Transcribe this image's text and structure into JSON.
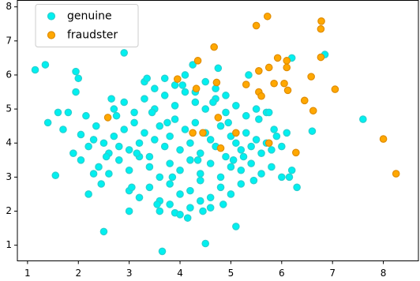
{
  "chart_data": {
    "type": "scatter",
    "xlim": [
      0.8,
      8.69
    ],
    "ylim": [
      0.54,
      8.19
    ],
    "xticks": [
      1,
      2,
      3,
      4,
      5,
      6,
      7,
      8
    ],
    "yticks": [
      1,
      2,
      3,
      4,
      5,
      6,
      7,
      8
    ],
    "legend": "upper left",
    "series": [
      {
        "name": "genuine",
        "color": "#00f0f0",
        "edge": "#2ccfcf",
        "x": [
          1.15,
          1.35,
          2.9,
          1.95,
          2.0,
          1.95,
          1.55,
          1.4,
          1.6,
          1.7,
          1.8,
          2.05,
          1.9,
          2.05,
          2.5,
          3.65,
          4.5,
          5.1,
          2.2,
          7.6,
          6.85,
          6.2,
          6.6,
          3.0,
          3.9,
          4.6,
          6.3,
          2.45,
          2.15,
          2.3,
          2.5,
          2.6,
          2.7,
          2.8,
          2.9,
          3.0,
          3.1,
          3.2,
          3.3,
          3.4,
          3.5,
          3.6,
          3.7,
          3.8,
          3.9,
          4.0,
          4.1,
          4.2,
          4.3,
          4.4,
          4.5,
          4.6,
          4.7,
          4.8,
          4.9,
          5.0,
          5.1,
          5.2,
          5.3,
          5.4,
          5.5,
          5.6,
          5.7,
          5.8,
          5.9,
          6.0,
          2.4,
          2.6,
          2.8,
          3.0,
          3.2,
          3.4,
          3.6,
          3.8,
          4.0,
          4.2,
          4.4,
          4.6,
          4.8,
          5.0,
          5.2,
          5.4,
          5.6,
          5.8,
          6.0,
          6.2,
          2.7,
          2.9,
          3.1,
          3.3,
          3.5,
          3.7,
          3.9,
          4.1,
          4.3,
          4.5,
          4.7,
          4.9,
          5.1,
          5.3,
          5.5,
          5.7,
          3.0,
          3.2,
          3.4,
          3.6,
          3.8,
          4.0,
          4.2,
          4.4,
          4.6,
          4.8,
          5.0,
          5.2,
          3.3,
          3.5,
          3.7,
          3.9,
          4.1,
          4.3,
          4.5,
          4.7,
          4.9,
          3.6,
          3.8,
          4.0,
          4.2,
          4.4,
          2.2,
          2.35,
          2.55,
          2.75,
          3.15,
          3.45,
          3.75,
          4.05,
          4.35,
          4.65,
          4.95,
          5.25,
          5.55,
          5.85,
          6.1,
          2.3,
          3.05,
          3.55,
          4.15,
          4.85,
          5.45,
          6.15,
          2.65,
          3.35,
          4.25,
          4.75,
          5.35,
          5.75,
          3.85,
          4.45,
          5.05
        ],
        "values": [
          6.15,
          6.3,
          6.65,
          6.1,
          5.9,
          5.5,
          3.05,
          4.6,
          4.9,
          4.4,
          4.9,
          4.25,
          3.7,
          3.5,
          1.4,
          0.82,
          1.05,
          1.55,
          2.5,
          4.7,
          6.6,
          6.5,
          4.35,
          2.0,
          1.95,
          2.1,
          2.7,
          2.8,
          4.8,
          4.1,
          4.0,
          3.7,
          4.2,
          3.9,
          4.4,
          3.8,
          4.6,
          4.0,
          4.3,
          3.6,
          4.1,
          4.5,
          3.9,
          4.2,
          4.7,
          3.8,
          4.4,
          4.0,
          4.6,
          3.7,
          4.3,
          4.1,
          3.9,
          4.5,
          3.6,
          4.2,
          4.0,
          3.8,
          4.3,
          3.9,
          4.1,
          3.7,
          4.0,
          3.8,
          4.2,
          3.9,
          3.3,
          3.1,
          3.5,
          3.2,
          3.6,
          3.3,
          3.0,
          3.4,
          3.2,
          3.5,
          3.1,
          3.4,
          3.0,
          3.3,
          3.2,
          3.4,
          3.1,
          3.3,
          3.0,
          3.2,
          5.0,
          5.2,
          4.9,
          5.3,
          5.0,
          5.4,
          5.1,
          5.5,
          5.2,
          5.0,
          5.3,
          4.9,
          5.1,
          4.8,
          5.0,
          4.9,
          2.6,
          2.4,
          2.7,
          2.3,
          2.8,
          2.5,
          2.6,
          2.9,
          2.4,
          2.7,
          2.5,
          2.8,
          5.8,
          5.6,
          5.9,
          5.7,
          6.0,
          5.5,
          5.8,
          5.6,
          5.4,
          2.0,
          2.2,
          1.9,
          2.1,
          2.3,
          3.9,
          4.5,
          3.6,
          4.8,
          3.7,
          4.9,
          4.6,
          5.7,
          3.5,
          5.2,
          4.6,
          3.6,
          4.7,
          4.4,
          4.3,
          3.1,
          2.7,
          2.2,
          1.8,
          2.2,
          2.9,
          3.0,
          5.3,
          5.9,
          6.3,
          6.2,
          6.0,
          4.9,
          3.0,
          2.0,
          3.5
        ]
      },
      {
        "name": "fraudster",
        "color": "#ffa800",
        "edge": "#e08c00",
        "x": [
          5.72,
          6.78,
          6.77,
          5.5,
          4.67,
          6.77,
          5.92,
          6.1,
          6.1,
          5.75,
          5.55,
          4.35,
          3.95,
          4.32,
          4.72,
          5.3,
          5.85,
          6.05,
          6.12,
          5.55,
          5.6,
          6.58,
          7.05,
          6.45,
          6.62,
          4.75,
          2.58,
          4.25,
          4.45,
          5.1,
          5.75,
          4.8,
          6.28,
          8.0,
          8.25
        ],
        "values": [
          7.72,
          7.58,
          7.35,
          7.45,
          6.82,
          6.52,
          6.5,
          6.42,
          6.22,
          6.22,
          6.12,
          6.42,
          5.88,
          5.6,
          5.78,
          5.72,
          5.75,
          5.75,
          5.55,
          5.5,
          5.38,
          5.95,
          5.58,
          5.25,
          4.95,
          4.75,
          4.75,
          4.3,
          4.3,
          4.3,
          4.0,
          3.85,
          3.72,
          4.12,
          3.1
        ]
      }
    ]
  }
}
